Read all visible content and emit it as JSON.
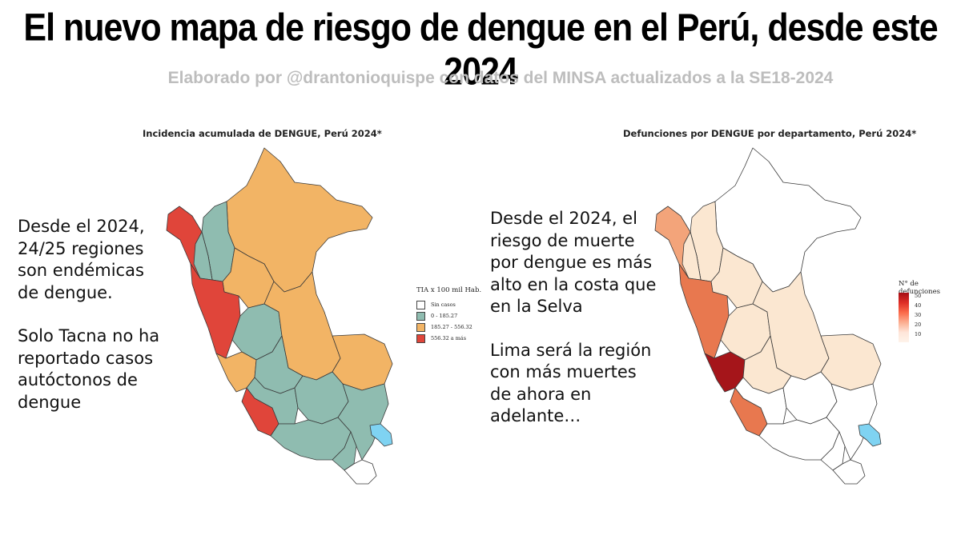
{
  "header": {
    "title": "El nuevo mapa de riesgo de dengue en el Perú, desde este 2024",
    "subtitle": "Elaborado por @drantonioquispe con datos del MINSA actualizados a la SE18-2024"
  },
  "left_panel": {
    "title": "Incidencia acumulada de DENGUE, Perú 2024*",
    "note_paragraphs": [
      "Desde el 2024, 24/25 regiones son endémicas de dengue.",
      "Solo Tacna no ha reportado casos autóctonos de dengue"
    ],
    "legend": {
      "title": "TIA x 100 mil Hab.",
      "items": [
        {
          "label": "Sin casos",
          "color": "#ffffff"
        },
        {
          "label": "0 - 185.27",
          "color": "#8fbcb0"
        },
        {
          "label": "185.27 - 556.32",
          "color": "#f2b465"
        },
        {
          "label": "556.32 a más",
          "color": "#e0453a"
        }
      ]
    }
  },
  "right_panel": {
    "title": "Defunciones por DENGUE por departamento, Perú 2024*",
    "note_paragraphs": [
      "Desde el 2024, el riesgo de muerte por dengue es más alto en la costa que en la Selva",
      "Lima será la región con más muertes de ahora en adelante…"
    ],
    "legend": {
      "title": "N° de defunciones",
      "ticks": [
        "50",
        "40",
        "30",
        "20",
        "10"
      ],
      "max_value": 55
    }
  },
  "map_colors": {
    "no_cases": "#ffffff",
    "low": "#8fbcb0",
    "mid": "#f2b465",
    "high": "#e0453a",
    "lake": "#7fd3f2",
    "deaths_high": "#a5151a",
    "deaths_mid": "#e8784f",
    "deaths_lowmid": "#f3a47a",
    "deaths_low": "#fbe7d1"
  }
}
